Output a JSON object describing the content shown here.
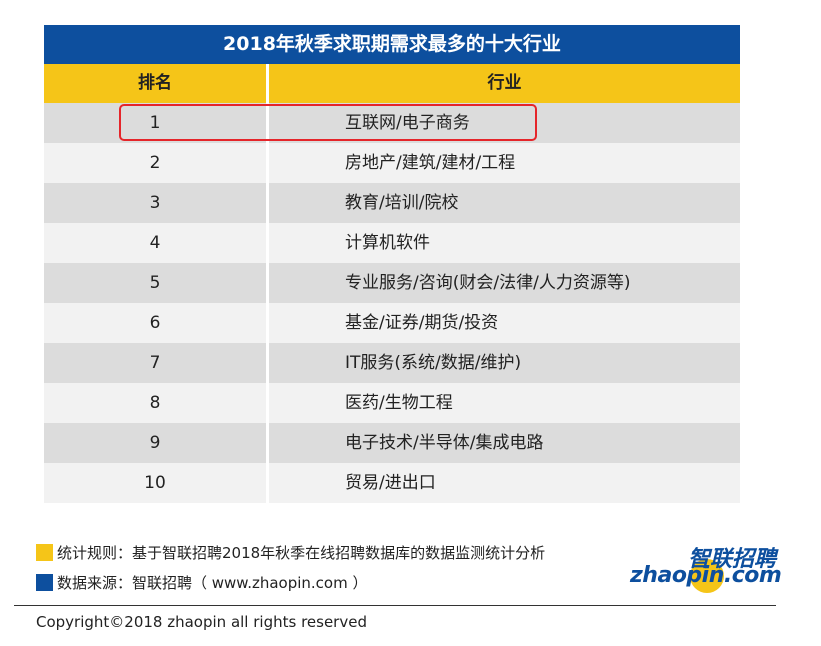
{
  "table": {
    "title": "2018年秋季求职期需求最多的十大行业",
    "header_rank": "排名",
    "header_industry": "行业",
    "rows": [
      {
        "rank": "1",
        "industry": "互联网/电子商务"
      },
      {
        "rank": "2",
        "industry": "房地产/建筑/建材/工程"
      },
      {
        "rank": "3",
        "industry": "教育/培训/院校"
      },
      {
        "rank": "4",
        "industry": "计算机软件"
      },
      {
        "rank": "5",
        "industry": "专业服务/咨询(财会/法律/人力资源等)"
      },
      {
        "rank": "6",
        "industry": "基金/证券/期货/投资"
      },
      {
        "rank": "7",
        "industry": "IT服务(系统/数据/维护)"
      },
      {
        "rank": "8",
        "industry": "医药/生物工程"
      },
      {
        "rank": "9",
        "industry": "电子技术/半导体/集成电路"
      },
      {
        "rank": "10",
        "industry": "贸易/进出口"
      }
    ]
  },
  "notes": {
    "rule": "统计规则：基于智联招聘2018年秋季在线招聘数据库的数据监测统计分析",
    "source": "数据来源：智联招聘（ www.zhaopin.com ）"
  },
  "logo": {
    "cn": "智联招聘",
    "en": "zhaopin.com"
  },
  "copyright": "Copyright©2018 zhaopin all rights reserved",
  "colors": {
    "title_bg": "#0d4f9e",
    "header_bg": "#f5c518",
    "highlight": "#e5252a"
  }
}
